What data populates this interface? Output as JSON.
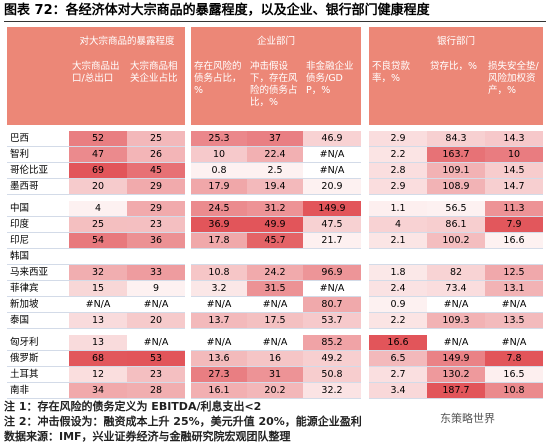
{
  "title": "图表 72：各经济体对大宗商品的暴露程度，以及企业、银行部门健康程度",
  "header_color": "#ec8777",
  "heat_low_color": "#fdf1f1",
  "heat_high_color": "#e2555a",
  "table": {
    "groups": [
      {
        "label": "对大宗商品的暴露程度",
        "columns": [
          {
            "label": "大宗商品出口/总出口",
            "heat": "high"
          },
          {
            "label": "大宗商品相关企业占比",
            "heat": "high"
          }
        ]
      },
      {
        "label": "企业部门",
        "columns": [
          {
            "label": "存在风险的债务占比，%",
            "heat": "high"
          },
          {
            "label": "冲击假设下，存在风险的债务占比，%",
            "heat": "high"
          },
          {
            "label": "非金融企业债务/GDP，%",
            "heat": "high"
          }
        ]
      },
      {
        "label": "银行部门",
        "columns": [
          {
            "label": "不良贷款率，%",
            "heat": "high"
          },
          {
            "label": "贷存比，%",
            "heat": "high"
          },
          {
            "label": "损失安全垫/风险加权资产，%",
            "heat": "low"
          }
        ]
      }
    ],
    "row_groups": [
      [
        {
          "name": "巴西",
          "values": [
            52,
            25,
            25.3,
            37,
            46.9,
            2.9,
            84.3,
            14.3
          ]
        },
        {
          "name": "智利",
          "values": [
            47,
            26,
            10,
            22.4,
            "#N/A",
            2.2,
            163.7,
            10
          ]
        },
        {
          "name": "哥伦比亚",
          "values": [
            69,
            45,
            0.8,
            2.5,
            "#N/A",
            2.8,
            109.1,
            14.5
          ]
        },
        {
          "name": "墨西哥",
          "values": [
            20,
            29,
            17.9,
            19.4,
            20.9,
            2.9,
            108.9,
            14.7
          ]
        }
      ],
      [
        {
          "name": "中国",
          "values": [
            4,
            29,
            24.5,
            31.2,
            149.9,
            1.1,
            56.5,
            11.3
          ]
        },
        {
          "name": "印度",
          "values": [
            25,
            23,
            36.9,
            49.9,
            47.5,
            4,
            86.1,
            7.9
          ]
        },
        {
          "name": "印尼",
          "values": [
            54,
            36,
            17.8,
            45.7,
            21.7,
            2.1,
            100.2,
            16.6
          ]
        },
        {
          "name": "韩国",
          "values": [
            null,
            null,
            null,
            null,
            null,
            null,
            null,
            null
          ]
        },
        {
          "name": "马来西亚",
          "values": [
            32,
            33,
            10.8,
            24.2,
            96.9,
            1.8,
            82,
            12.5
          ]
        },
        {
          "name": "菲律宾",
          "values": [
            15,
            9,
            3.2,
            31.5,
            "#N/A",
            2.4,
            73.4,
            13.1
          ]
        },
        {
          "name": "新加坡",
          "values": [
            "#N/A",
            "#N/A",
            "#N/A",
            "#N/A",
            80.7,
            0.9,
            "#N/A",
            "#N/A"
          ]
        },
        {
          "name": "泰国",
          "values": [
            13,
            20,
            13.7,
            17.5,
            53.7,
            2.2,
            109.3,
            13.5
          ]
        }
      ],
      [
        {
          "name": "匈牙利",
          "values": [
            13,
            "#N/A",
            "#N/A",
            "#N/A",
            85.2,
            16.6,
            "#N/A",
            "#N/A"
          ]
        },
        {
          "name": "俄罗斯",
          "values": [
            68,
            53,
            13.6,
            16,
            49.2,
            6.5,
            149.9,
            7.8
          ]
        },
        {
          "name": "土耳其",
          "values": [
            12,
            23,
            27.3,
            31,
            50.8,
            2.7,
            130.2,
            16.5
          ]
        },
        {
          "name": "南非",
          "values": [
            34,
            28,
            16.1,
            20.2,
            32.2,
            3.4,
            187.7,
            10.8
          ]
        }
      ]
    ]
  },
  "notes": [
    "注 1：存在风险的债务定义为 EBITDA/利息支出<2",
    "注 2：冲击假设为：融资成本上升 25%，美元升值 20%，能源企业盈利"
  ],
  "source": "数据来源：IMF，兴业证券经济与金融研究院宏观团队整理",
  "watermark": "东策略世界"
}
